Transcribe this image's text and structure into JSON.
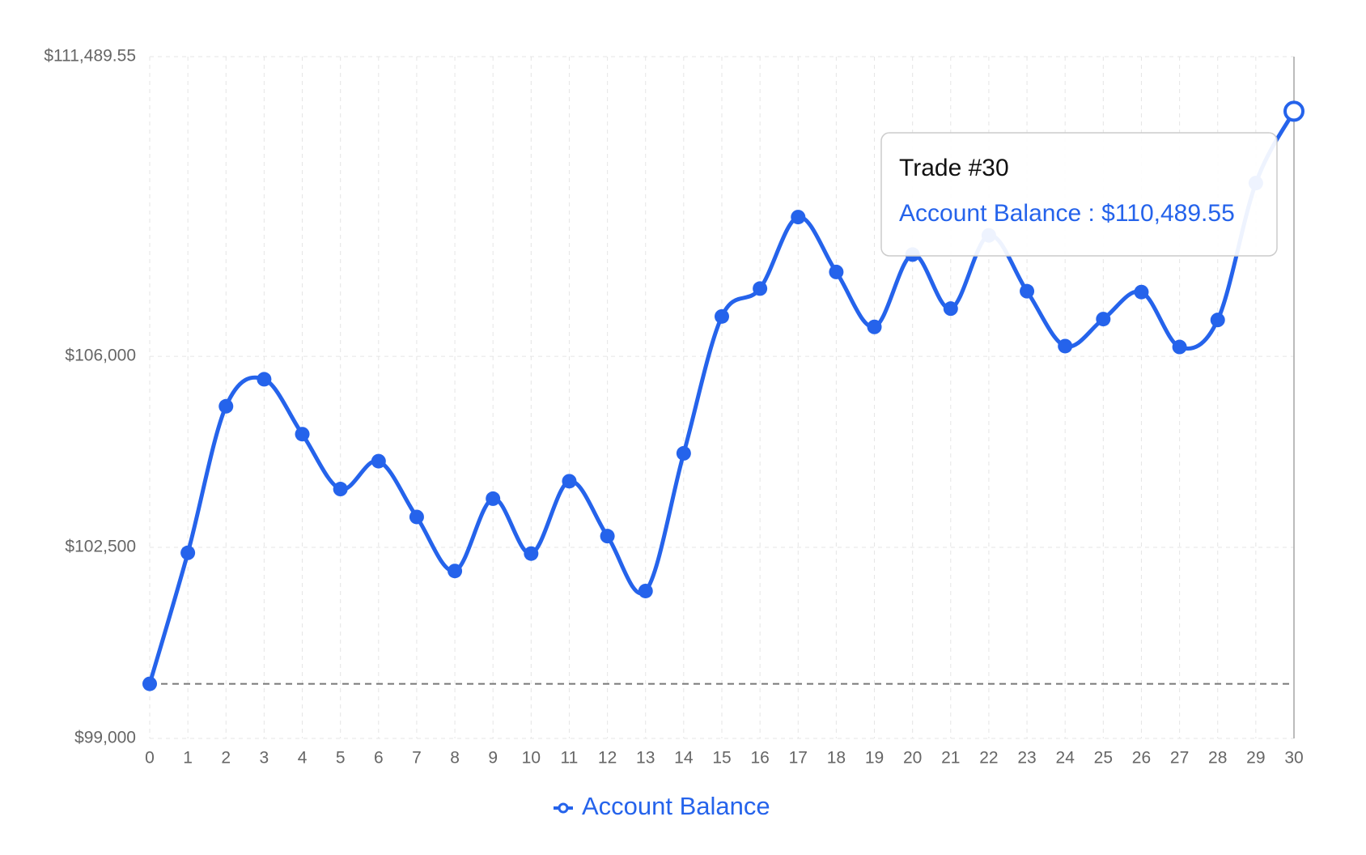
{
  "chart_data": {
    "type": "line",
    "x": [
      0,
      1,
      2,
      3,
      4,
      5,
      6,
      7,
      8,
      9,
      10,
      11,
      12,
      13,
      14,
      15,
      16,
      17,
      18,
      19,
      20,
      21,
      22,
      23,
      24,
      25,
      26,
      27,
      28,
      29,
      30
    ],
    "series": [
      {
        "name": "Account Balance",
        "color": "#2563eb",
        "values": [
          100000,
          102400,
          105085,
          105580,
          104574,
          103568,
          104079,
          103057,
          102067,
          103392,
          102386,
          103712,
          102706,
          101700,
          104223,
          106730,
          107241,
          108551,
          107545,
          106539,
          107864,
          106874,
          108216,
          107193,
          106187,
          106682,
          107177,
          106171,
          106666,
          109174,
          110489.55
        ]
      }
    ],
    "xlim": [
      0,
      30
    ],
    "xticks": [
      0,
      1,
      2,
      3,
      4,
      5,
      6,
      7,
      8,
      9,
      10,
      11,
      12,
      13,
      14,
      15,
      16,
      17,
      18,
      19,
      20,
      21,
      22,
      23,
      24,
      25,
      26,
      27,
      28,
      29,
      30
    ],
    "ylim": [
      99000,
      111489.55
    ],
    "yticks": [
      {
        "value": 99000,
        "label": "$99,000"
      },
      {
        "value": 102500,
        "label": "$102,500"
      },
      {
        "value": 106000,
        "label": "$106,000"
      },
      {
        "value": 111489.55,
        "label": "$111,489.55"
      }
    ],
    "reference_line": 100000,
    "grid": true,
    "legend": "bottom",
    "tooltip": {
      "index": 30,
      "title": "Trade #30",
      "text": "Account Balance : $110,489.55"
    }
  }
}
